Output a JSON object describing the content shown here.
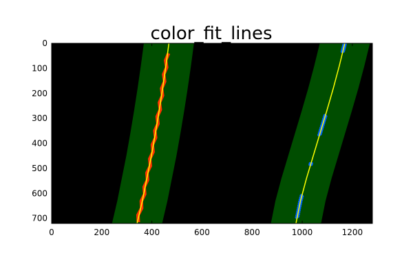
{
  "chart_data": {
    "type": "line",
    "title": "color_fit_lines",
    "xlabel": "",
    "ylabel": "",
    "xlim": [
      0,
      1280
    ],
    "ylim": [
      720,
      0
    ],
    "y_inverted": true,
    "x_ticks": [
      0,
      200,
      400,
      600,
      800,
      1000,
      1200
    ],
    "y_ticks": [
      0,
      100,
      200,
      300,
      400,
      500,
      600,
      700
    ],
    "grid": false,
    "background_color": "#000000",
    "search_window_margin": 100,
    "series": [
      {
        "color": "#ffff00",
        "x": [
          468,
          456,
          443,
          429,
          414,
          398,
          380,
          362,
          341
        ],
        "y": [
          0,
          90,
          180,
          270,
          360,
          450,
          540,
          630,
          720
        ]
      },
      {
        "color": "#ffff00",
        "x": [
          1170,
          1148,
          1124,
          1098,
          1071,
          1044,
          1017,
          993,
          975
        ],
        "y": [
          0,
          90,
          180,
          270,
          360,
          450,
          540,
          630,
          720
        ]
      }
    ],
    "lane_pixel_regions": [
      {
        "color": "#ff3300",
        "y_range": [
          40,
          715
        ]
      },
      {
        "color": "#0066ff",
        "y_range": [
          0,
          35
        ]
      },
      {
        "color": "#0066ff",
        "y_range": [
          285,
          370
        ]
      },
      {
        "color": "#0066ff",
        "y_range": [
          480,
          485
        ]
      },
      {
        "color": "#0066ff",
        "y_range": [
          605,
          700
        ]
      }
    ],
    "colors": {
      "window_fill": "#004d00",
      "left_lane_pixels": "#ff3300",
      "right_lane_pixels": "#0066ff",
      "fit_line": "#ffff00"
    }
  }
}
